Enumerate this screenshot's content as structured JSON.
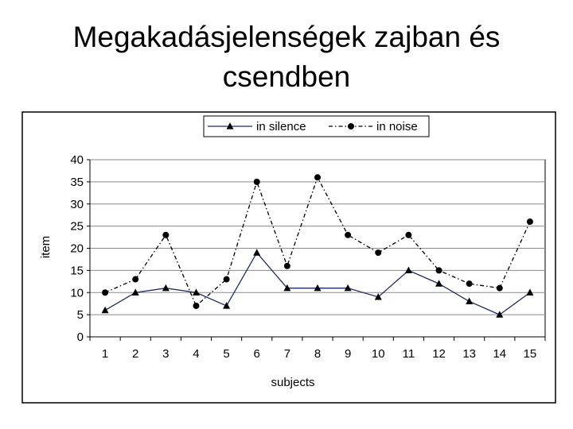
{
  "slide": {
    "title_line1": "Megakadásjelenségek zajban és",
    "title_line2": "csendben"
  },
  "chart_data": {
    "type": "line",
    "title": "",
    "xlabel": "subjects",
    "ylabel": "item",
    "x": [
      1,
      2,
      3,
      4,
      5,
      6,
      7,
      8,
      9,
      10,
      11,
      12,
      13,
      14,
      15
    ],
    "ylim": [
      0,
      40
    ],
    "yticks": [
      0,
      5,
      10,
      15,
      20,
      25,
      30,
      35,
      40
    ],
    "grid": "horizontal",
    "legend": "top",
    "series": [
      {
        "name": "in silence",
        "values": [
          6,
          10,
          11,
          10,
          7,
          19,
          11,
          11,
          11,
          9,
          15,
          12,
          8,
          5,
          10
        ],
        "color": "#1f2a6b",
        "marker": "triangle",
        "line": "solid"
      },
      {
        "name": "in noise",
        "values": [
          10,
          13,
          23,
          7,
          13,
          35,
          16,
          36,
          23,
          19,
          23,
          15,
          12,
          11,
          26
        ],
        "color": "#000000",
        "marker": "circle",
        "line": "dashdot"
      }
    ]
  }
}
